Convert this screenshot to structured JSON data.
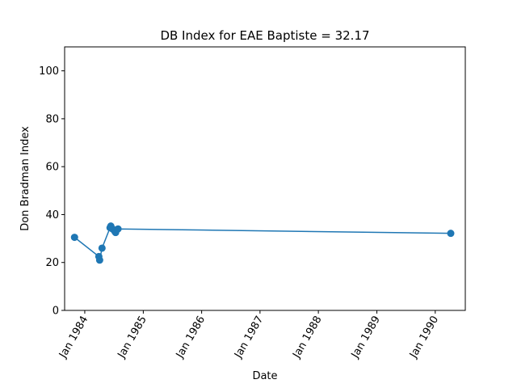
{
  "chart_data": {
    "type": "line",
    "title": "DB Index for EAE Baptiste = 32.17",
    "xlabel": "Date",
    "ylabel": "Don Bradman Index",
    "x_scale": "date",
    "xlim": [
      "1983-08-28",
      "1990-07-08"
    ],
    "ylim": [
      0,
      110
    ],
    "x_ticks": [
      {
        "date": "1984-01-01",
        "label": "Jan 1984"
      },
      {
        "date": "1985-01-01",
        "label": "Jan 1985"
      },
      {
        "date": "1986-01-01",
        "label": "Jan 1986"
      },
      {
        "date": "1987-01-01",
        "label": "Jan 1987"
      },
      {
        "date": "1988-01-01",
        "label": "Jan 1988"
      },
      {
        "date": "1989-01-01",
        "label": "Jan 1989"
      },
      {
        "date": "1990-01-01",
        "label": "Jan 1990"
      }
    ],
    "y_ticks": [
      0,
      20,
      40,
      60,
      80,
      100
    ],
    "grid": false,
    "legend": "none",
    "series_color": "#1f77b4",
    "series": [
      {
        "x": [
          "1983-10-29",
          "1984-03-29",
          "1984-04-03",
          "1984-04-18",
          "1984-06-07",
          "1984-06-12",
          "1984-06-22",
          "1984-07-07",
          "1984-07-12",
          "1984-07-27",
          "1990-04-08"
        ],
        "y": [
          30.5,
          22.5,
          21.0,
          26.0,
          34.5,
          35.2,
          34.0,
          33.0,
          32.5,
          34.0,
          32.17
        ]
      }
    ]
  }
}
